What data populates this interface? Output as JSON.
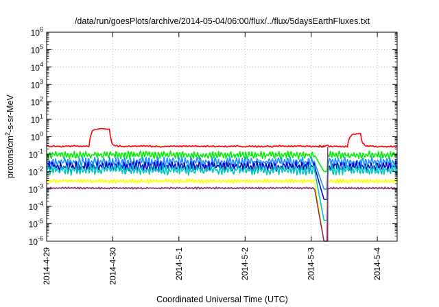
{
  "chart_data": {
    "type": "line",
    "title": "/data/run/goesPlots/archive/2014-05-04/06:00/flux/../flux/5daysEarthFluxes.txt",
    "xlabel": "Coordinated Universal Time (UTC)",
    "ylabel_parts": {
      "pre": "protons/cm",
      "sup": "2",
      "post": "-s-sr-MeV"
    },
    "x_ticks": [
      "2014-4-29",
      "2014-4-30",
      "2014-5-1",
      "2014-5-2",
      "2014-5-3",
      "2014-5-4"
    ],
    "xlim_days": [
      0,
      5.3
    ],
    "yscale": "log",
    "ylim_exp": [
      -6,
      6
    ],
    "y_tick_exponents": [
      -6,
      -5,
      -4,
      -3,
      -2,
      -1,
      0,
      1,
      2,
      3,
      4,
      5,
      6
    ],
    "grid": "dotted",
    "gap_days": [
      4.05,
      4.25
    ],
    "series": [
      {
        "color": "#ff0000",
        "base": -0.55,
        "noise": 0.12,
        "drop_to": null
      },
      {
        "color": "#00ee00",
        "base": -1.05,
        "noise": 0.22,
        "drop_to": -2.0
      },
      {
        "color": "#1e90ff",
        "base": -1.45,
        "noise": 0.28,
        "drop_to": -3.0
      },
      {
        "color": "#0000cd",
        "base": -1.7,
        "noise": 0.28,
        "drop_to": -3.6
      },
      {
        "color": "#00c4c4",
        "base": -1.9,
        "noise": 0.3,
        "drop_to": -4.8
      },
      {
        "color": "#ffff00",
        "base": -2.55,
        "noise": 0.12,
        "drop_to": -6
      },
      {
        "color": "#8b2a6b",
        "base": -2.95,
        "noise": 0.05,
        "drop_to": -6
      }
    ],
    "red_bumps": [
      {
        "start": 0.65,
        "end": 0.95,
        "level": 0.45
      },
      {
        "start": 4.55,
        "end": 4.75,
        "level": 0.15
      }
    ]
  }
}
